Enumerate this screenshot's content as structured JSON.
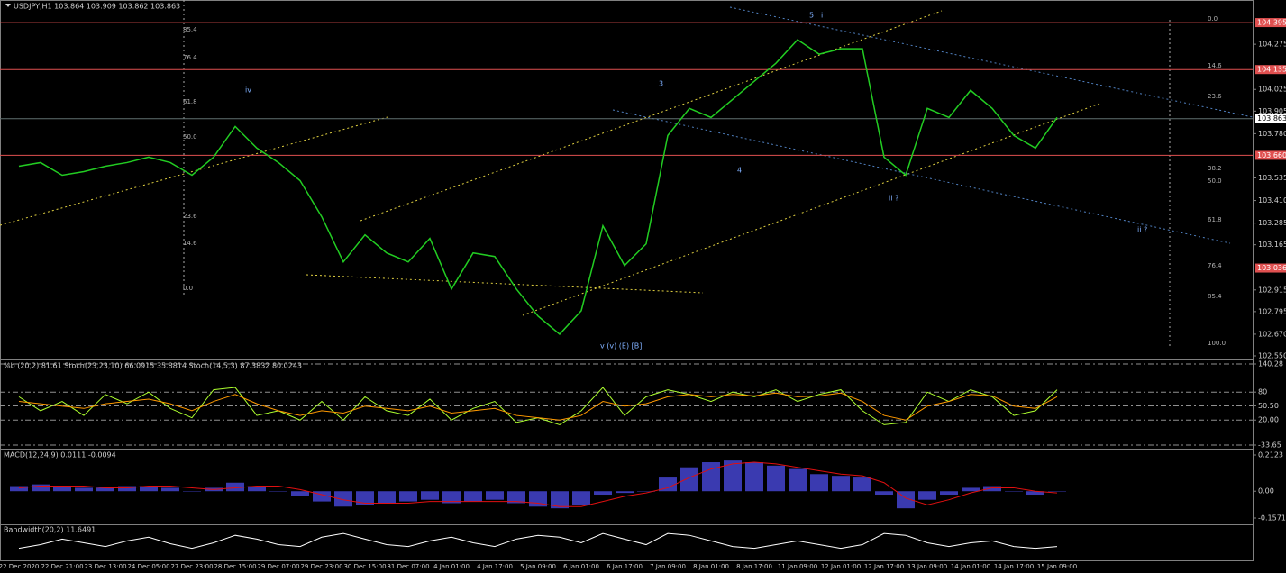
{
  "chart_data": [
    {
      "type": "line",
      "title": "USDJPY,H1 103.864 103.909 103.862 103.863",
      "categories": [
        "22 Dec 2020",
        null,
        "22 Dec 21:00",
        null,
        "23 Dec 13:00",
        null,
        "24 Dec 05:00",
        null,
        "27 Dec 23:00",
        null,
        "28 Dec 15:00",
        null,
        "29 Dec 07:00",
        null,
        "29 Dec 23:00",
        null,
        "30 Dec 15:00",
        null,
        "31 Dec 07:00",
        null,
        "4 Jan 01:00",
        null,
        "4 Jan 17:00",
        null,
        "5 Jan 09:00",
        null,
        "6 Jan 01:00",
        null,
        "6 Jan 17:00",
        null,
        "7 Jan 09:00",
        null,
        "8 Jan 01:00",
        null,
        "8 Jan 17:00",
        null,
        "11 Jan 09:00",
        null,
        "12 Jan 01:00",
        null,
        "12 Jan 17:00",
        null,
        "13 Jan 09:00",
        null,
        "14 Jan 01:00",
        null,
        "14 Jan 17:00",
        null,
        "15 Jan 09:00"
      ],
      "series": [
        {
          "color": "#22cc22",
          "values": [
            103.6,
            103.62,
            103.55,
            103.57,
            103.6,
            103.62,
            103.65,
            103.62,
            103.55,
            103.65,
            103.82,
            103.7,
            103.62,
            103.52,
            103.32,
            103.07,
            103.22,
            103.12,
            103.07,
            103.2,
            102.92,
            103.12,
            103.1,
            102.92,
            102.77,
            102.67,
            102.8,
            103.27,
            103.05,
            103.17,
            103.77,
            103.92,
            103.87,
            103.97,
            104.07,
            104.17,
            104.3,
            104.22,
            104.25,
            104.25,
            103.65,
            103.55,
            103.92,
            103.87,
            104.02,
            103.92,
            103.77,
            103.7,
            103.87
          ]
        }
      ],
      "ylim": [
        102.53,
        104.52
      ],
      "yticks": [
        104.275,
        104.025,
        103.905,
        {
          "value": 103.78,
          "label": "103.780"
        },
        103.535,
        {
          "value": 103.41,
          "label": "103.410"
        },
        103.285,
        103.165,
        102.915,
        102.795,
        {
          "value": 102.67,
          "label": "102.670"
        },
        {
          "value": 102.55,
          "label": "102.550"
        }
      ],
      "levels": [
        104.395,
        104.135,
        {
          "value": 103.66,
          "label": "103.660"
        },
        103.036
      ],
      "level_color": "#e05050",
      "current_price": 103.863,
      "fib_left": [
        "85.4",
        "76.4",
        "61.8",
        "50.0",
        "23.6",
        "14.6",
        "0.0"
      ],
      "fib_right": [
        "0.0",
        "14.6",
        "23.6",
        "38.2",
        "50.0",
        "61.8",
        "76.4",
        "85.4",
        "100.0"
      ],
      "wave_labels": [
        "iv",
        "5",
        "i",
        "3",
        "4",
        "ii ?",
        "ii ?",
        "v (v) (E) [B]"
      ]
    },
    {
      "type": "line",
      "title": "%b (20,2) 81.61 Stoch(23,23,10) 66.0915 35.8814 Stoch(14,5,3) 87.3832 80.0243",
      "series": [
        {
          "color": "#adff2f",
          "values": [
            70,
            40,
            60,
            30,
            75,
            55,
            80,
            45,
            25,
            85,
            90,
            30,
            40,
            20,
            60,
            20,
            70,
            40,
            30,
            65,
            20,
            45,
            60,
            15,
            25,
            10,
            40,
            90,
            30,
            70,
            85,
            75,
            60,
            80,
            70,
            85,
            60,
            75,
            85,
            40,
            10,
            15,
            80,
            60,
            85,
            70,
            30,
            40,
            85
          ]
        },
        {
          "color": "#ff9900",
          "values": [
            60,
            55,
            50,
            45,
            55,
            60,
            65,
            55,
            40,
            60,
            75,
            55,
            40,
            30,
            40,
            35,
            50,
            45,
            40,
            50,
            35,
            40,
            45,
            30,
            25,
            20,
            30,
            60,
            50,
            55,
            70,
            75,
            70,
            75,
            72,
            78,
            70,
            72,
            78,
            60,
            30,
            20,
            50,
            60,
            75,
            72,
            50,
            45,
            70
          ]
        }
      ],
      "ylim": [
        -33.65,
        140.28
      ],
      "yticks": [
        140.28,
        80,
        {
          "value": 50.5,
          "label": "50.50"
        },
        {
          "value": 20,
          "label": "20.00"
        },
        -33.65
      ],
      "grid": true
    },
    {
      "type": "bar",
      "title": "MACD(12,24,9) 0.0111 -0.0094",
      "series": [
        {
          "color": "#3a3ab0",
          "values": [
            0.03,
            0.04,
            0.03,
            0.02,
            0.02,
            0.03,
            0.03,
            0.02,
            0.0,
            0.02,
            0.05,
            0.03,
            0.0,
            -0.03,
            -0.06,
            -0.09,
            -0.08,
            -0.07,
            -0.06,
            -0.05,
            -0.07,
            -0.06,
            -0.05,
            -0.07,
            -0.09,
            -0.1,
            -0.08,
            -0.02,
            -0.01,
            0.0,
            0.08,
            0.14,
            0.17,
            0.18,
            0.17,
            0.15,
            0.13,
            0.1,
            0.09,
            0.08,
            -0.02,
            -0.1,
            -0.05,
            -0.02,
            0.02,
            0.03,
            0.0,
            -0.02,
            0.0
          ]
        },
        {
          "type": "line",
          "color": "#e01010",
          "values": [
            0.02,
            0.03,
            0.03,
            0.03,
            0.02,
            0.02,
            0.03,
            0.03,
            0.02,
            0.01,
            0.02,
            0.03,
            0.03,
            0.01,
            -0.02,
            -0.05,
            -0.07,
            -0.07,
            -0.07,
            -0.06,
            -0.06,
            -0.06,
            -0.06,
            -0.06,
            -0.07,
            -0.09,
            -0.09,
            -0.06,
            -0.03,
            -0.01,
            0.02,
            0.08,
            0.13,
            0.16,
            0.17,
            0.16,
            0.14,
            0.12,
            0.1,
            0.09,
            0.05,
            -0.04,
            -0.08,
            -0.05,
            -0.01,
            0.02,
            0.02,
            0.0,
            -0.01
          ]
        }
      ],
      "ylim": [
        -0.1571,
        0.2123
      ],
      "yticks": [
        0.2123,
        {
          "value": 0,
          "label": "0.00"
        },
        -0.1571
      ]
    },
    {
      "type": "line",
      "title": "Bandwidth(20,2) 11.6491",
      "series": [
        {
          "color": "#ffffff",
          "values": [
            10,
            14,
            20,
            16,
            12,
            18,
            22,
            15,
            10,
            16,
            24,
            20,
            14,
            12,
            22,
            26,
            20,
            14,
            12,
            18,
            22,
            16,
            12,
            20,
            24,
            22,
            16,
            26,
            20,
            14,
            26,
            24,
            18,
            12,
            10,
            14,
            18,
            14,
            10,
            14,
            26,
            24,
            16,
            12,
            16,
            18,
            12,
            10,
            12
          ]
        }
      ],
      "ylim": [
        0,
        30
      ]
    }
  ]
}
